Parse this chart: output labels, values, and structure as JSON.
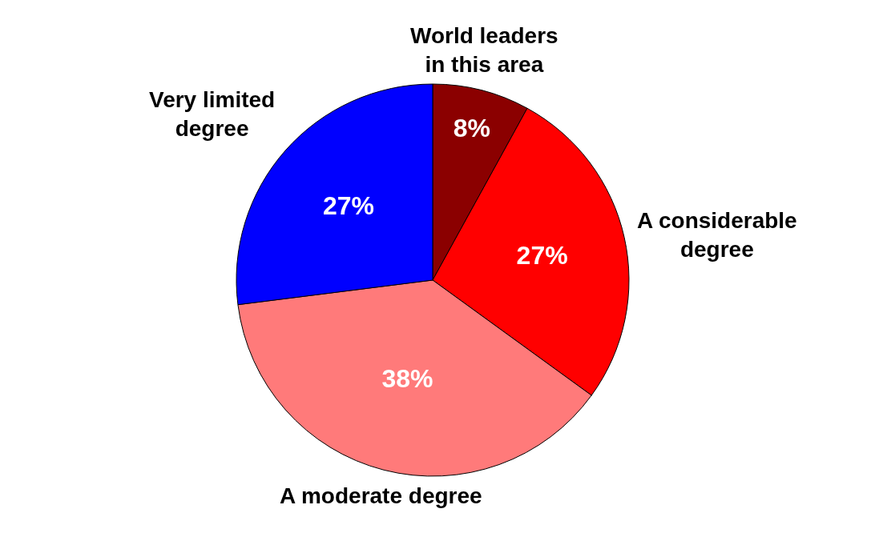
{
  "chart_data": {
    "type": "pie",
    "categories": [
      "World leaders in this area",
      "A considerable degree",
      "A moderate degree",
      "Very limited degree"
    ],
    "values": [
      8,
      27,
      38,
      27
    ],
    "value_labels": [
      "8%",
      "27%",
      "38%",
      "27%"
    ],
    "colors": [
      "#8b0000",
      "#ff0000",
      "#ff7a7a",
      "#0000ff"
    ]
  }
}
